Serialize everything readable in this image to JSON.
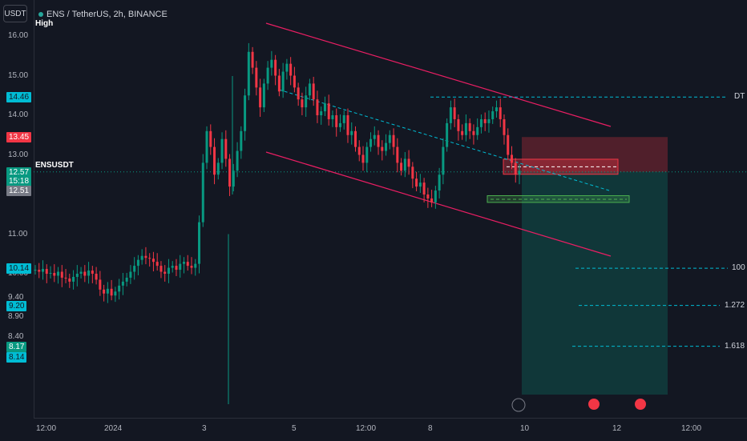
{
  "header": {
    "currency_button": "USDT",
    "title": "ENS / TetherUS, 2h, BINANCE",
    "high_label": "High",
    "symbol_label": "ENSUSDT"
  },
  "price_axis": {
    "ticks": [
      {
        "label": "16.00",
        "price": 16.0
      },
      {
        "label": "15.00",
        "price": 15.0
      },
      {
        "label": "14.00",
        "price": 14.0
      },
      {
        "label": "13.00",
        "price": 13.0
      },
      {
        "label": "11.00",
        "price": 11.0
      },
      {
        "label": "10.00",
        "price": 10.0
      },
      {
        "label": "9.40",
        "price": 9.4
      },
      {
        "label": "8.90",
        "price": 8.9
      },
      {
        "label": "8.40",
        "price": 8.4
      }
    ],
    "badges": [
      {
        "label": "14.46",
        "price": 14.46,
        "color": "#00bcd4",
        "text": "#131722"
      },
      {
        "label": "13.45",
        "price": 13.45,
        "color": "#f23645",
        "text": "#ffffff"
      },
      {
        "label": "12.57",
        "price": 12.57,
        "color": "#089981",
        "text": "#ffffff"
      },
      {
        "label": "15:18",
        "price": 12.35,
        "color": "#089981",
        "text": "#ffffff"
      },
      {
        "label": "12.51",
        "price": 12.1,
        "color": "#787b86",
        "text": "#ffffff"
      },
      {
        "label": "10.14",
        "price": 10.14,
        "color": "#00bcd4",
        "text": "#131722"
      },
      {
        "label": "9.20",
        "price": 9.2,
        "color": "#00bcd4",
        "text": "#131722"
      },
      {
        "label": "8.17",
        "price": 8.17,
        "color": "#089981",
        "text": "#ffffff"
      },
      {
        "label": "8.14",
        "price": 7.9,
        "color": "#00bcd4",
        "text": "#131722"
      }
    ]
  },
  "time_axis": {
    "labels": [
      {
        "label": "12:00"
      },
      {
        "label": "2024"
      },
      {
        "label": "3"
      },
      {
        "label": "5"
      },
      {
        "label": "12:00"
      },
      {
        "label": "8"
      },
      {
        "label": "10"
      },
      {
        "label": "12"
      },
      {
        "label": "12:00"
      }
    ]
  },
  "fib_labels": [
    {
      "label": "DT",
      "price": 14.46
    },
    {
      "label": "100",
      "price": 10.14
    },
    {
      "label": "1.272",
      "price": 9.2
    },
    {
      "label": "1.618",
      "price": 8.17
    }
  ],
  "colors": {
    "up": "#089981",
    "down": "#f23645",
    "channel": "#e91e63",
    "fib": "#00bcd4",
    "long_zone": "#4caf50"
  },
  "chart_data": {
    "type": "candlestick",
    "symbol": "ENSUSDT",
    "interval": "2h",
    "exchange": "BINANCE",
    "last_price": 12.57,
    "high_marker": 16.0,
    "stop_zone": [
      12.51,
      13.45
    ],
    "entry_zone": [
      12.57,
      12.89
    ],
    "long_zone": [
      11.8,
      11.97
    ],
    "levels": {
      "DT": 14.46,
      "100": 10.14,
      "1.272": 9.2,
      "1.618": 8.17
    },
    "closes": [
      10.1,
      10.05,
      10.12,
      10.0,
      10.02,
      9.95,
      10.05,
      9.9,
      9.88,
      9.8,
      9.92,
      10.0,
      10.05,
      9.95,
      10.08,
      10.0,
      9.85,
      9.6,
      9.5,
      9.62,
      9.45,
      9.55,
      9.7,
      9.8,
      9.9,
      10.05,
      10.2,
      10.35,
      10.45,
      10.4,
      10.38,
      10.3,
      10.2,
      10.05,
      10.0,
      10.15,
      10.2,
      10.1,
      10.25,
      10.3,
      10.2,
      10.15,
      10.25,
      11.3,
      12.8,
      13.6,
      13.2,
      12.5,
      12.8,
      13.4,
      12.9,
      12.2,
      12.6,
      13.1,
      13.6,
      14.5,
      15.6,
      15.2,
      14.7,
      14.2,
      14.8,
      15.2,
      15.4,
      15.0,
      14.6,
      15.1,
      15.3,
      15.0,
      14.7,
      14.4,
      14.2,
      14.5,
      14.8,
      14.4,
      14.0,
      14.1,
      14.3,
      13.9,
      14.0,
      13.7,
      13.8,
      14.0,
      13.5,
      13.6,
      13.2,
      13.0,
      12.8,
      13.2,
      13.4,
      13.5,
      13.2,
      13.1,
      13.3,
      13.5,
      13.2,
      12.8,
      12.6,
      12.9,
      12.7,
      12.4,
      12.2,
      12.3,
      12.0,
      11.9,
      11.8,
      12.1,
      12.5,
      13.2,
      13.8,
      14.2,
      13.9,
      13.6,
      13.5,
      13.8,
      13.6,
      13.5,
      13.7,
      13.9,
      13.8,
      13.9,
      14.1,
      14.2,
      13.9,
      13.5,
      13.0,
      12.8,
      12.5,
      12.6
    ]
  }
}
